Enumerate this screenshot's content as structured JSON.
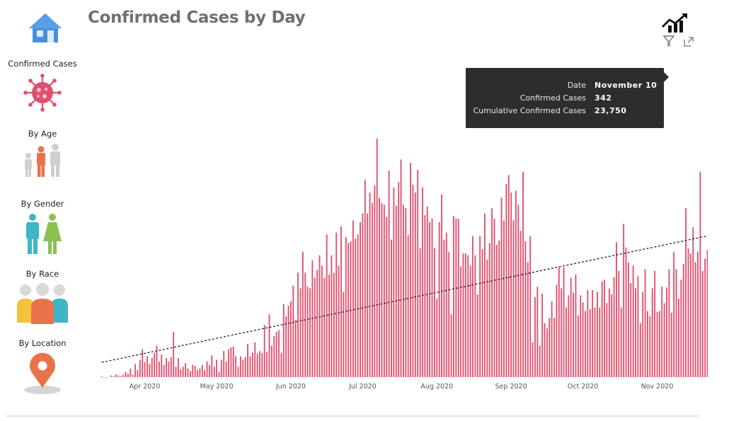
{
  "title": "Confirmed Cases by Day",
  "sidebar": {
    "items": [
      {
        "label": "Confirmed Cases",
        "icon": "virus-icon"
      },
      {
        "label": "By Age",
        "icon": "people-age-icon"
      },
      {
        "label": "By Gender",
        "icon": "gender-icon"
      },
      {
        "label": "By Race",
        "icon": "group-icon"
      },
      {
        "label": "By Location",
        "icon": "location-pin-icon"
      }
    ]
  },
  "tooltip": {
    "rows": [
      {
        "label": "Date",
        "value": "November 10"
      },
      {
        "label": "Confirmed Cases",
        "value": "342"
      },
      {
        "label": "Cumulative Confirmed Cases",
        "value": "23,750"
      }
    ]
  },
  "colors": {
    "bar": "#e0506e",
    "trend": "#222222",
    "home": "#4a90d9",
    "virus": "#e0506e",
    "tooltip_bg": "#2d2d2d"
  },
  "chart_data": {
    "type": "bar",
    "title": "Confirmed Cases by Day",
    "xlabel": "",
    "ylabel": "",
    "x_ticks": [
      "Apr 2020",
      "May 2020",
      "Jun 2020",
      "Jul 2020",
      "Aug 2020",
      "Sep 2020",
      "Oct 2020",
      "Nov 2020"
    ],
    "start_date": "2020-03-14",
    "end_date": "2020-11-11",
    "ylim": [
      0,
      360
    ],
    "trend_line": {
      "start_value": 17,
      "end_value": 180
    },
    "values": [
      1,
      0,
      0,
      0,
      2,
      1,
      3,
      2,
      1,
      3,
      6,
      4,
      10,
      3,
      15,
      8,
      20,
      32,
      17,
      24,
      15,
      22,
      28,
      36,
      18,
      26,
      14,
      22,
      18,
      23,
      52,
      12,
      22,
      9,
      12,
      16,
      10,
      7,
      14,
      13,
      8,
      10,
      14,
      8,
      18,
      14,
      25,
      12,
      20,
      6,
      20,
      30,
      18,
      32,
      34,
      35,
      24,
      12,
      24,
      20,
      23,
      38,
      24,
      28,
      40,
      27,
      30,
      28,
      60,
      29,
      72,
      36,
      47,
      52,
      54,
      28,
      84,
      70,
      82,
      87,
      105,
      66,
      120,
      102,
      144,
      120,
      104,
      102,
      134,
      114,
      123,
      140,
      128,
      114,
      164,
      118,
      140,
      120,
      166,
      128,
      173,
      98,
      161,
      154,
      156,
      180,
      159,
      164,
      178,
      188,
      227,
      188,
      212,
      200,
      220,
      274,
      206,
      200,
      198,
      184,
      237,
      158,
      218,
      197,
      224,
      250,
      198,
      194,
      163,
      246,
      221,
      212,
      238,
      148,
      218,
      186,
      196,
      178,
      182,
      148,
      90,
      178,
      210,
      158,
      166,
      144,
      72,
      185,
      182,
      182,
      127,
      142,
      142,
      140,
      128,
      162,
      140,
      95,
      162,
      147,
      188,
      135,
      154,
      194,
      182,
      152,
      157,
      206,
      180,
      222,
      232,
      212,
      180,
      214,
      198,
      168,
      236,
      156,
      132,
      162,
      40,
      92,
      104,
      36,
      96,
      62,
      56,
      68,
      87,
      68,
      106,
      126,
      102,
      126,
      80,
      94,
      114,
      97,
      118,
      71,
      94,
      86,
      76,
      100,
      78,
      100,
      80,
      98,
      80,
      110,
      112,
      85,
      102,
      95,
      115,
      155,
      122,
      80,
      176,
      149,
      132,
      108,
      128,
      102,
      116,
      62,
      98,
      124,
      76,
      70,
      102,
      122,
      75,
      76,
      104,
      85,
      103,
      124,
      74,
      144,
      124,
      90,
      112,
      130,
      194,
      148,
      142,
      172,
      132,
      144,
      236,
      122,
      136,
      146,
      156,
      148,
      159,
      182,
      202,
      124,
      166,
      208,
      198,
      218,
      211,
      214,
      210,
      310,
      210,
      162,
      230,
      196,
      198,
      216,
      236,
      162,
      280,
      308,
      230,
      298,
      278,
      152,
      336,
      342,
      13
    ]
  }
}
